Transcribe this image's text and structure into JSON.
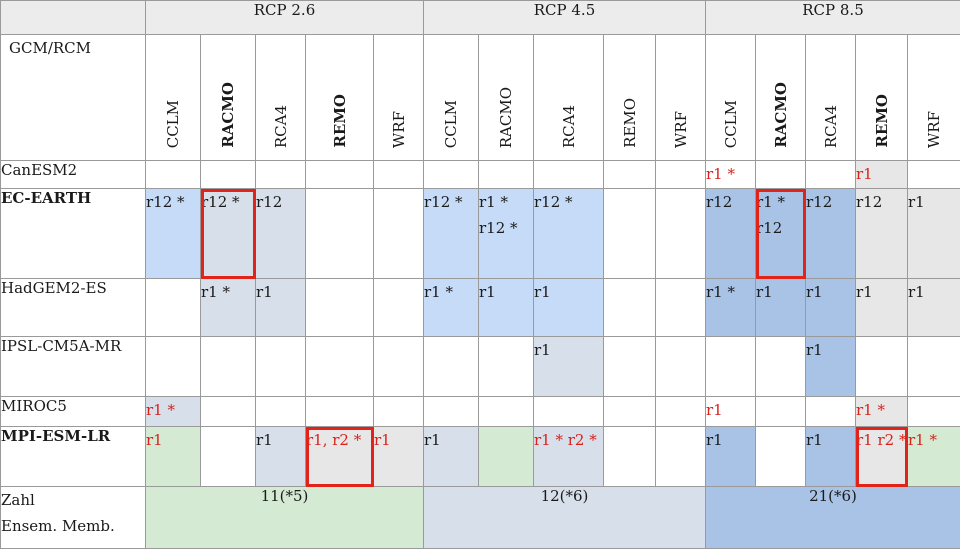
{
  "scenarios": [
    "RCP 2.6",
    "RCP 4.5",
    "RCP 8.5"
  ],
  "gcm_header": "GCM/RCM",
  "rcms": [
    {
      "name": "CCLM",
      "bold": false
    },
    {
      "name": "RACMO",
      "bold": true
    },
    {
      "name": "RCA4",
      "bold": false
    },
    {
      "name": "REMO",
      "bold": true
    },
    {
      "name": "WRF",
      "bold": false
    },
    {
      "name": "CCLM",
      "bold": false
    },
    {
      "name": "RACMO",
      "bold": false
    },
    {
      "name": "RCA4",
      "bold": false
    },
    {
      "name": "REMO",
      "bold": false
    },
    {
      "name": "WRF",
      "bold": false
    },
    {
      "name": "CCLM",
      "bold": false
    },
    {
      "name": "RACMO",
      "bold": true
    },
    {
      "name": "RCA4",
      "bold": false
    },
    {
      "name": "REMO",
      "bold": true
    },
    {
      "name": "WRF",
      "bold": false
    }
  ],
  "rows": [
    {
      "gcm": "CanESM2",
      "bold": false,
      "height": 28,
      "cells": [
        {
          "t": "",
          "c": "white"
        },
        {
          "t": "",
          "c": "white"
        },
        {
          "t": "",
          "c": "white"
        },
        {
          "t": "",
          "c": "white"
        },
        {
          "t": "",
          "c": "white"
        },
        {
          "t": "",
          "c": "white"
        },
        {
          "t": "",
          "c": "white"
        },
        {
          "t": "",
          "c": "white"
        },
        {
          "t": "",
          "c": "white"
        },
        {
          "t": "",
          "c": "white"
        },
        {
          "t": "r1 *",
          "c": "white",
          "red": true
        },
        {
          "t": "",
          "c": "white"
        },
        {
          "t": "",
          "c": "white"
        },
        {
          "t": "r1",
          "c": "grey",
          "red": true
        },
        {
          "t": "",
          "c": "white"
        }
      ]
    },
    {
      "gcm": "EC-EARTH",
      "bold": true,
      "height": 90,
      "cells": [
        {
          "t": "r12 *",
          "c": "lblue"
        },
        {
          "t": "r12 *",
          "c": "gblue",
          "boxed": true
        },
        {
          "t": "r12",
          "c": "gblue"
        },
        {
          "t": "",
          "c": "white"
        },
        {
          "t": "",
          "c": "white"
        },
        {
          "t": "r12 *",
          "c": "lblue"
        },
        {
          "t": "r1 * r12 *",
          "c": "lblue"
        },
        {
          "t": "r12 *",
          "c": "lblue"
        },
        {
          "t": "",
          "c": "white"
        },
        {
          "t": "",
          "c": "white"
        },
        {
          "t": "r12",
          "c": "mblue"
        },
        {
          "t": "r1 * r12",
          "c": "mblue",
          "boxed": true
        },
        {
          "t": "r12",
          "c": "mblue"
        },
        {
          "t": "r12",
          "c": "grey"
        },
        {
          "t": "r1",
          "c": "grey"
        }
      ]
    },
    {
      "gcm": "HadGEM2-ES",
      "bold": false,
      "height": 58,
      "cells": [
        {
          "t": "",
          "c": "white"
        },
        {
          "t": "r1 *",
          "c": "gblue"
        },
        {
          "t": "r1",
          "c": "gblue"
        },
        {
          "t": "",
          "c": "white"
        },
        {
          "t": "",
          "c": "white"
        },
        {
          "t": "r1 *",
          "c": "lblue"
        },
        {
          "t": "r1",
          "c": "lblue"
        },
        {
          "t": "r1",
          "c": "lblue"
        },
        {
          "t": "",
          "c": "white"
        },
        {
          "t": "",
          "c": "white"
        },
        {
          "t": "r1 *",
          "c": "mblue"
        },
        {
          "t": "r1",
          "c": "mblue"
        },
        {
          "t": "r1",
          "c": "mblue"
        },
        {
          "t": "r1",
          "c": "grey"
        },
        {
          "t": "r1",
          "c": "grey"
        }
      ]
    },
    {
      "gcm": "IPSL-CM5A-MR",
      "bold": false,
      "height": 60,
      "cells": [
        {
          "t": "",
          "c": "white"
        },
        {
          "t": "",
          "c": "white"
        },
        {
          "t": "",
          "c": "white"
        },
        {
          "t": "",
          "c": "white"
        },
        {
          "t": "",
          "c": "white"
        },
        {
          "t": "",
          "c": "white"
        },
        {
          "t": "",
          "c": "white"
        },
        {
          "t": "r1",
          "c": "gblue"
        },
        {
          "t": "",
          "c": "white"
        },
        {
          "t": "",
          "c": "white"
        },
        {
          "t": "",
          "c": "white"
        },
        {
          "t": "",
          "c": "white"
        },
        {
          "t": "r1",
          "c": "mblue"
        },
        {
          "t": "",
          "c": "white"
        },
        {
          "t": "",
          "c": "white"
        }
      ]
    },
    {
      "gcm": "MIROC5",
      "bold": false,
      "height": 30,
      "cells": [
        {
          "t": "r1 *",
          "c": "gblue",
          "red": true
        },
        {
          "t": "",
          "c": "white"
        },
        {
          "t": "",
          "c": "white"
        },
        {
          "t": "",
          "c": "white"
        },
        {
          "t": "",
          "c": "white"
        },
        {
          "t": "",
          "c": "white"
        },
        {
          "t": "",
          "c": "white"
        },
        {
          "t": "",
          "c": "white"
        },
        {
          "t": "",
          "c": "white"
        },
        {
          "t": "",
          "c": "white"
        },
        {
          "t": "r1",
          "c": "white",
          "red": true
        },
        {
          "t": "",
          "c": "white"
        },
        {
          "t": "",
          "c": "white"
        },
        {
          "t": "r1 *",
          "c": "grey",
          "red": true
        },
        {
          "t": "",
          "c": "white"
        }
      ]
    },
    {
      "gcm": "MPI-ESM-LR",
      "bold": true,
      "height": 60,
      "cells": [
        {
          "t": "r1",
          "c": "green",
          "red": true
        },
        {
          "t": "",
          "c": "white"
        },
        {
          "t": "r1",
          "c": "gblue"
        },
        {
          "t": "r1,  r2 *",
          "c": "grey",
          "red": true,
          "boxed": true
        },
        {
          "t": "r1",
          "c": "grey",
          "red": true
        },
        {
          "t": "r1",
          "c": "gblue"
        },
        {
          "t": "",
          "c": "green"
        },
        {
          "t": "r1 * r2 *",
          "c": "gblue",
          "red": true
        },
        {
          "t": "",
          "c": "white"
        },
        {
          "t": "",
          "c": "white"
        },
        {
          "t": "r1",
          "c": "mblue"
        },
        {
          "t": "",
          "c": "white"
        },
        {
          "t": "r1",
          "c": "mblue"
        },
        {
          "t": "r1 r2 *",
          "c": "grey",
          "red": true,
          "boxed": true
        },
        {
          "t": "r1 *",
          "c": "green",
          "red": true
        }
      ]
    }
  ],
  "footer": {
    "label_line1": "Zahl",
    "label_line2": "Ensem. Memb.",
    "totals": [
      "11(*5)",
      "12(*6)",
      "21(*6)"
    ],
    "colors": [
      "green",
      "gblue",
      "mblue"
    ]
  }
}
